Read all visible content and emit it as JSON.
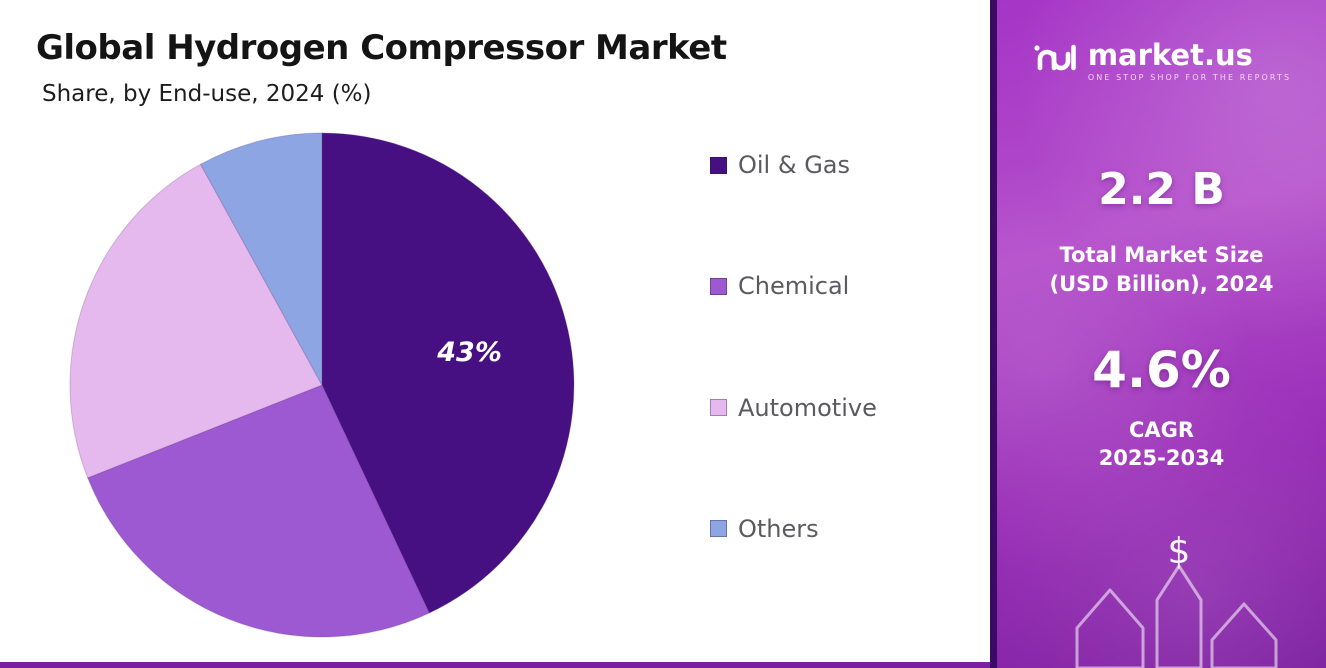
{
  "title": "Global Hydrogen Compressor Market",
  "subtitle": "Share, by End-use, 2024 (%)",
  "chart_data": {
    "type": "pie",
    "title": "Global Hydrogen Compressor Market",
    "subtitle": "Share, by End-use, 2024 (%)",
    "categories": [
      "Oil & Gas",
      "Chemical",
      "Automotive",
      "Others"
    ],
    "values": [
      43,
      26,
      23,
      8
    ],
    "colors": [
      "#471082",
      "#9c59d1",
      "#e5b9ed",
      "#8ea5e3"
    ],
    "start_angle_deg": 0,
    "direction": "clockwise",
    "data_label": {
      "slice_index": 0,
      "text": "43%"
    },
    "legend_position": "right"
  },
  "legend": {
    "items": [
      {
        "label": "Oil & Gas"
      },
      {
        "label": "Chemical"
      },
      {
        "label": "Automotive"
      },
      {
        "label": "Others"
      }
    ]
  },
  "sidebar": {
    "logo_name": "market.us",
    "logo_tagline": "ONE STOP SHOP FOR THE REPORTS",
    "stat1_value": "2.2 B",
    "stat1_label_line1": "Total Market Size",
    "stat1_label_line2": "(USD Billion), 2024",
    "stat2_value": "4.6%",
    "stat2_label_line1": "CAGR",
    "stat2_label_line2": "2025-2034",
    "dollar_symbol": "$"
  },
  "colors": {
    "accent_purple": "#7b1fa2",
    "panel_dark_edge": "#3b0b63",
    "title_text": "#141414",
    "legend_text": "#5a5a60"
  }
}
